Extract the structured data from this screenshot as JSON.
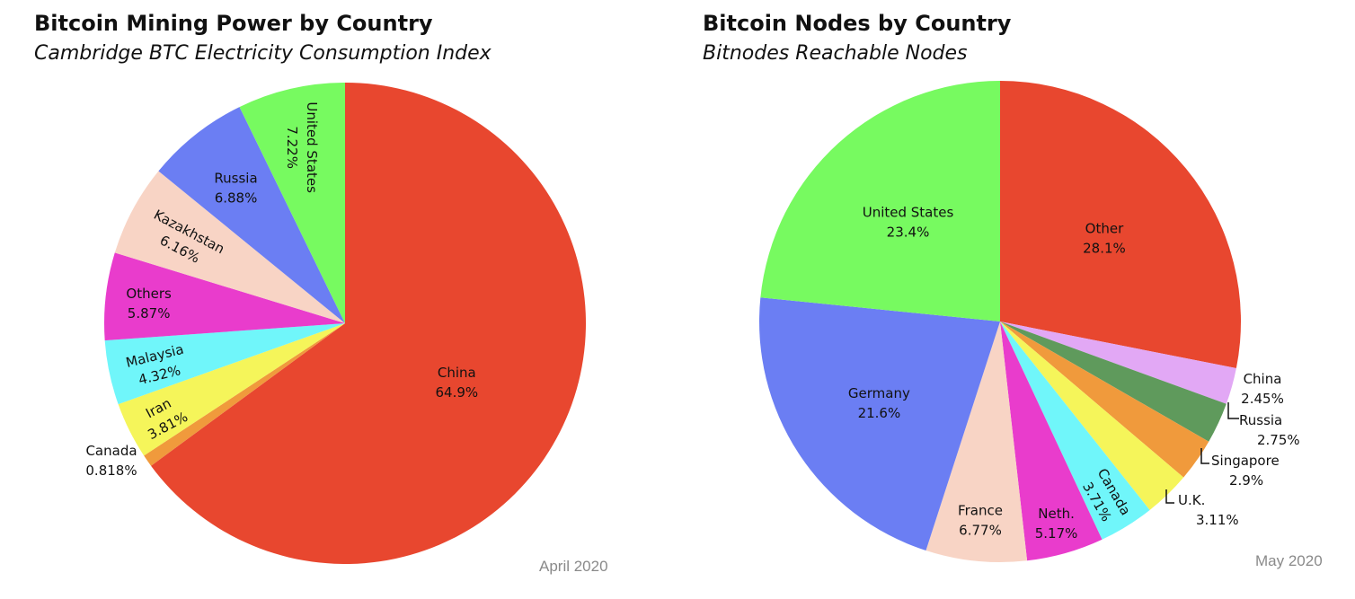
{
  "chart_data": [
    {
      "type": "pie",
      "title": "Bitcoin Mining Power by Country",
      "subtitle": "Cambridge BTC Electricity Consumption Index",
      "date_label": "April 2020",
      "slices": [
        {
          "label": "China",
          "value": 64.9,
          "display": "64.9%",
          "color": "#e8472f"
        },
        {
          "label": "Canada",
          "value": 0.818,
          "display": "0.818%",
          "color": "#f09a3c"
        },
        {
          "label": "Iran",
          "value": 3.81,
          "display": "3.81%",
          "color": "#f5f55a"
        },
        {
          "label": "Malaysia",
          "value": 4.32,
          "display": "4.32%",
          "color": "#70f6fa"
        },
        {
          "label": "Others",
          "value": 5.87,
          "display": "5.87%",
          "color": "#e93ccc"
        },
        {
          "label": "Kazakhstan",
          "value": 6.16,
          "display": "6.16%",
          "color": "#f8d4c5"
        },
        {
          "label": "Russia",
          "value": 6.88,
          "display": "6.88%",
          "color": "#6b7ef3"
        },
        {
          "label": "United States",
          "value": 7.22,
          "display": "7.22%",
          "color": "#77fa60"
        }
      ]
    },
    {
      "type": "pie",
      "title": "Bitcoin Nodes by Country",
      "subtitle": "Bitnodes Reachable Nodes",
      "date_label": "May 2020",
      "slices": [
        {
          "label": "Other",
          "value": 28.1,
          "display": "28.1%",
          "color": "#e8472f"
        },
        {
          "label": "China",
          "value": 2.45,
          "display": "2.45%",
          "color": "#e2a8f5"
        },
        {
          "label": "Russia",
          "value": 2.75,
          "display": "2.75%",
          "color": "#5f9a5c"
        },
        {
          "label": "Singapore",
          "value": 2.9,
          "display": "2.9%",
          "color": "#f09a3c"
        },
        {
          "label": "U.K.",
          "value": 3.11,
          "display": "3.11%",
          "color": "#f5f55a"
        },
        {
          "label": "Canada",
          "value": 3.71,
          "display": "3.71%",
          "color": "#70f6fa"
        },
        {
          "label": "Neth.",
          "value": 5.17,
          "display": "5.17%",
          "color": "#e93ccc"
        },
        {
          "label": "France",
          "value": 6.77,
          "display": "6.77%",
          "color": "#f8d4c5"
        },
        {
          "label": "Germany",
          "value": 21.6,
          "display": "21.6%",
          "color": "#6b7ef3"
        },
        {
          "label": "United States",
          "value": 23.4,
          "display": "23.4%",
          "color": "#77fa60"
        }
      ]
    }
  ]
}
